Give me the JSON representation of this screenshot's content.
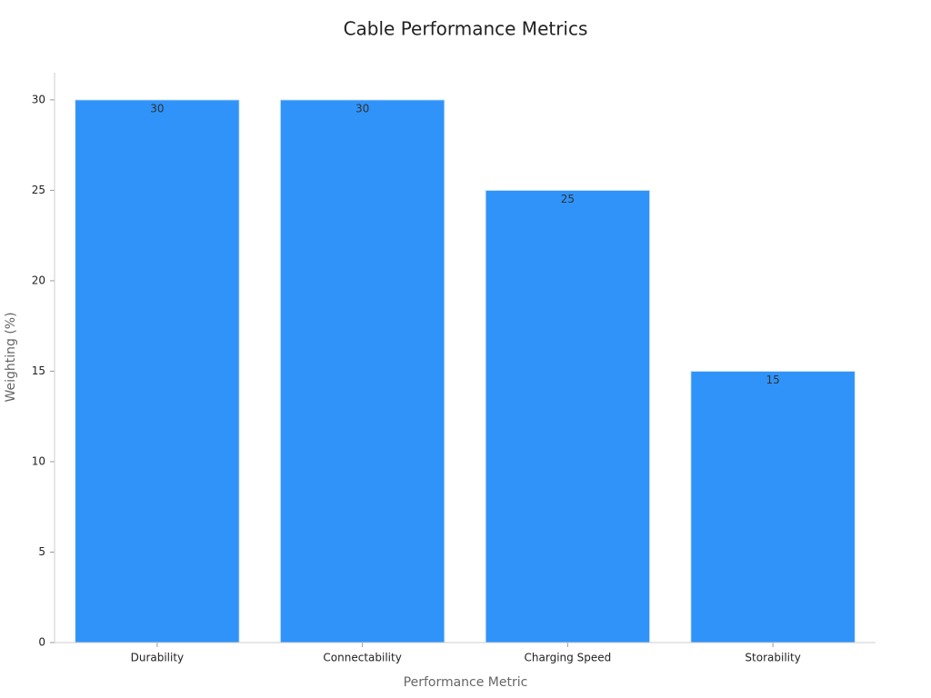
{
  "chart_data": {
    "type": "bar",
    "title": "Cable Performance Metrics",
    "x_label": "Performance Metric",
    "y_label": "Weighting (%)",
    "categories": [
      "Durability",
      "Connectability",
      "Charging Speed",
      "Storability"
    ],
    "values": [
      30,
      30,
      25,
      15
    ],
    "color": "#2f93f9",
    "ylim": [
      0,
      31.5
    ],
    "yticks": [
      0,
      5,
      10,
      15,
      20,
      25,
      30
    ],
    "grid": false
  }
}
